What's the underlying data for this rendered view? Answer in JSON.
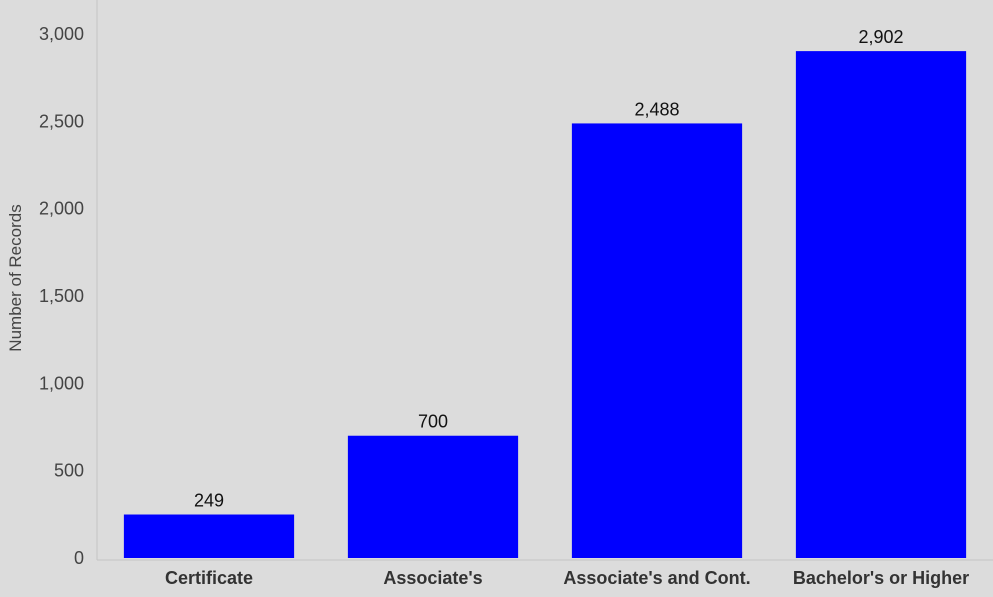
{
  "chart_data": {
    "type": "bar",
    "title": "",
    "xlabel": "",
    "ylabel": "Number of Records",
    "categories": [
      "Certificate",
      "Associate's",
      "Associate's and Cont.",
      "Bachelor's or Higher"
    ],
    "values": [
      249,
      700,
      2488,
      2902
    ],
    "data_labels": [
      "249",
      "700",
      "2,488",
      "2,902"
    ],
    "ylim": [
      0,
      3000
    ],
    "yticks": [
      0,
      500,
      1000,
      1500,
      2000,
      2500,
      3000
    ],
    "ytick_labels": [
      "0",
      "500",
      "1,000",
      "1,500",
      "2,000",
      "2,500",
      "3,000"
    ],
    "bar_color": "#0000ff",
    "background_color": "#dcdcdc",
    "grid": false,
    "legend": "none"
  }
}
